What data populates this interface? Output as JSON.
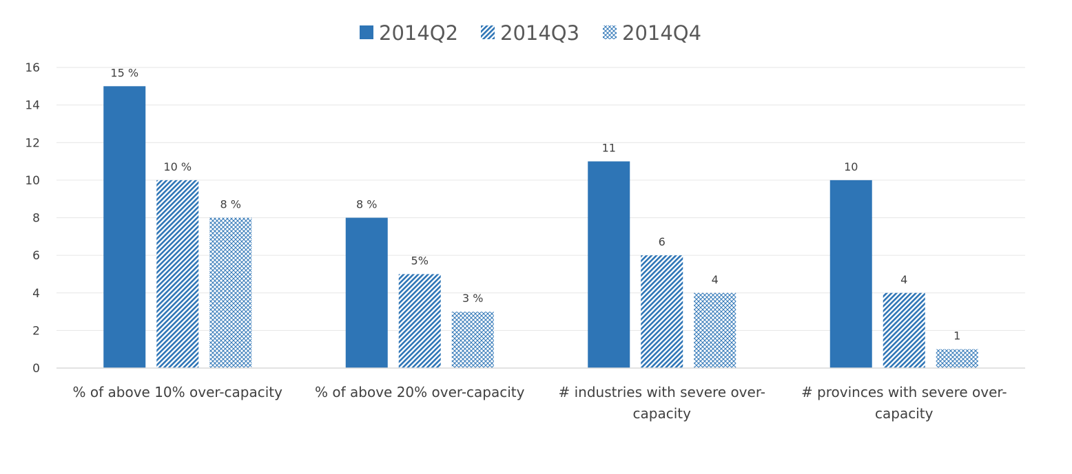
{
  "chart_data": {
    "type": "bar",
    "title": "",
    "xlabel": "",
    "ylabel": "",
    "ylim": [
      0,
      16
    ],
    "yticks": [
      0,
      2,
      4,
      6,
      8,
      10,
      12,
      14,
      16
    ],
    "grid": true,
    "legend_position": "top-center",
    "categories": [
      [
        "% of above 10% over-capacity"
      ],
      [
        "% of above 20% over-capacity"
      ],
      [
        "# industries with severe over-",
        "capacity"
      ],
      [
        "# provinces with severe over-",
        "capacity"
      ]
    ],
    "series": [
      {
        "name": "2014Q2",
        "pattern": "solid",
        "color": "#2E75B6",
        "values": [
          15,
          8,
          11,
          10
        ],
        "labels": [
          "15 %",
          "8  %",
          "11",
          "10"
        ]
      },
      {
        "name": "2014Q3",
        "pattern": "diagonal-stripes",
        "color": "#2E75B6",
        "values": [
          10,
          5,
          6,
          4
        ],
        "labels": [
          "10 %",
          "5%",
          "6",
          "4"
        ]
      },
      {
        "name": "2014Q4",
        "pattern": "crosshatch",
        "color": "#2E75B6",
        "values": [
          8,
          3,
          4,
          1
        ],
        "labels": [
          "8 %",
          "3 %",
          "4",
          "1"
        ]
      }
    ],
    "colors": {
      "axis": "#D9D9D9",
      "gridline": "#E6E6E6",
      "text": "#404040",
      "legend_text": "#595959"
    }
  }
}
